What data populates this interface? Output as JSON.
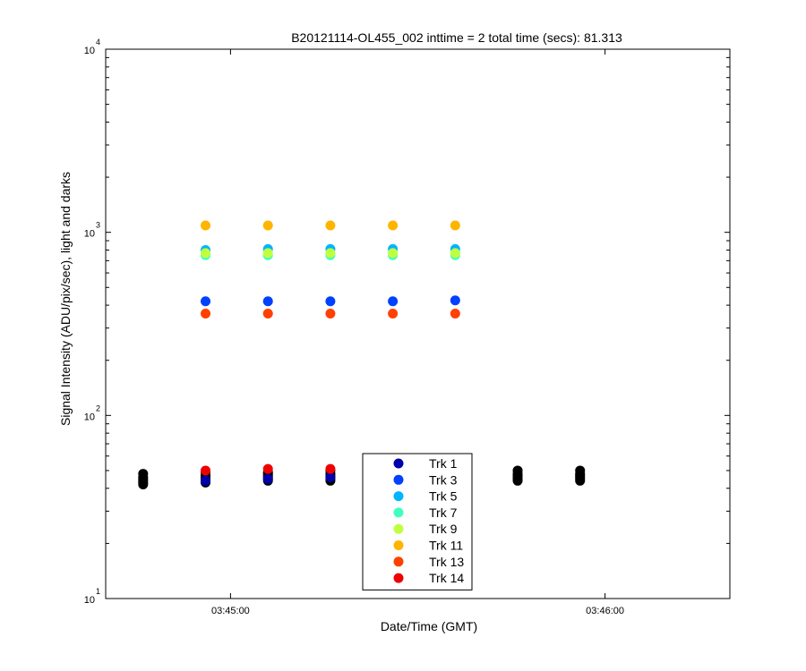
{
  "chart_data": {
    "type": "scatter",
    "title": "B20121114-OL455_002 inttime = 2 total time (secs): 81.313",
    "xlabel": "Date/Time (GMT)",
    "ylabel": "Signal Intensity (ADU/pix/sec), light and darks",
    "y_scale": "log",
    "ylim": [
      10,
      10000
    ],
    "xlim": [
      "03:44:40",
      "03:46:20"
    ],
    "x_ticks": [
      "03:45:00",
      "03:46:00"
    ],
    "y_ticks": [
      {
        "value": 10,
        "base": "10",
        "exp": "1"
      },
      {
        "value": 100,
        "base": "10",
        "exp": "2"
      },
      {
        "value": 1000,
        "base": "10",
        "exp": "3"
      },
      {
        "value": 10000,
        "base": "10",
        "exp": "4"
      }
    ],
    "grid": false,
    "legend_position": "bottom-center",
    "light_times": [
      "03:44:56",
      "03:45:06",
      "03:45:16",
      "03:45:26",
      "03:45:36"
    ],
    "dark_times": [
      "03:44:46",
      "03:44:56",
      "03:45:06",
      "03:45:16",
      "03:45:26",
      "03:45:36",
      "03:45:46",
      "03:45:56"
    ],
    "dark_color": "#000000",
    "dark_values": [
      [
        42,
        43,
        44,
        45,
        46,
        48
      ],
      [
        43,
        44,
        45,
        46,
        47,
        49
      ],
      [
        44,
        45,
        46,
        47,
        48,
        49
      ],
      [
        44,
        45,
        46,
        47,
        48,
        50
      ],
      [
        44,
        45,
        46,
        47,
        48,
        50
      ],
      [
        44,
        45,
        46,
        47,
        48,
        50
      ],
      [
        44,
        45,
        46,
        47,
        48,
        50
      ],
      [
        44,
        45,
        46,
        47,
        48,
        50
      ]
    ],
    "series": [
      {
        "name": "Trk 1",
        "color": "#0000aa",
        "values": [
          44,
          45,
          46,
          46,
          45
        ]
      },
      {
        "name": "Trk 3",
        "color": "#0040ff",
        "values": [
          420,
          420,
          420,
          420,
          425
        ]
      },
      {
        "name": "Trk 5",
        "color": "#00b4ff",
        "values": [
          800,
          810,
          810,
          810,
          810
        ]
      },
      {
        "name": "Trk 7",
        "color": "#40ffc0",
        "values": [
          750,
          750,
          750,
          750,
          750
        ]
      },
      {
        "name": "Trk 9",
        "color": "#c0ff40",
        "values": [
          770,
          770,
          770,
          770,
          770
        ]
      },
      {
        "name": "Trk 11",
        "color": "#ffb400",
        "values": [
          1090,
          1090,
          1090,
          1090,
          1090
        ]
      },
      {
        "name": "Trk 13",
        "color": "#ff4000",
        "values": [
          360,
          360,
          360,
          360,
          360
        ]
      },
      {
        "name": "Trk 14",
        "color": "#ee0000",
        "values": [
          50,
          51,
          51,
          51,
          51
        ]
      }
    ]
  }
}
